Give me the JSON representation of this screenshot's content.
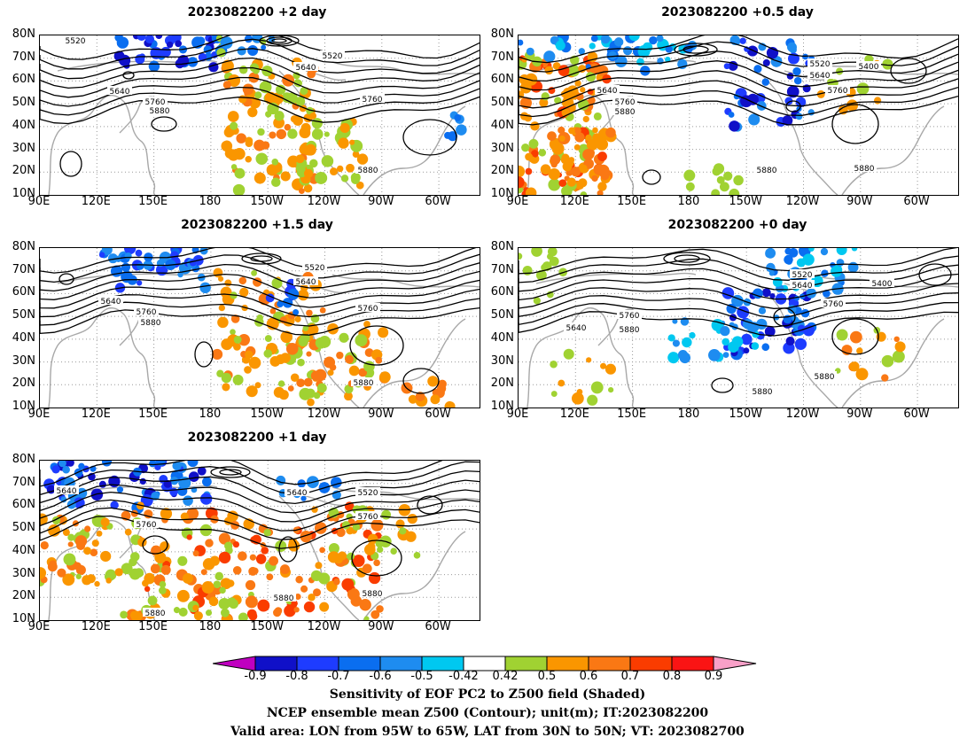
{
  "panels": [
    {
      "title": "2023082200 +2 day"
    },
    {
      "title": "2023082200 +0.5 day"
    },
    {
      "title": "2023082200 +1.5 day"
    },
    {
      "title": "2023082200 +0 day"
    },
    {
      "title": "2023082200 +1 day"
    }
  ],
  "lat_labels": [
    "80N",
    "70N",
    "60N",
    "50N",
    "40N",
    "30N",
    "20N",
    "10N"
  ],
  "lon_labels": [
    "90E",
    "120E",
    "150E",
    "180",
    "150W",
    "120W",
    "90W",
    "60W"
  ],
  "contour_labels": [
    "5400",
    "5520",
    "5640",
    "5760",
    "5880"
  ],
  "colorbar": {
    "labels": [
      "-0.9",
      "-0.8",
      "-0.7",
      "-0.6",
      "-0.5",
      "-0.42",
      "0.42",
      "0.5",
      "0.6",
      "0.7",
      "0.8",
      "0.9"
    ],
    "colors": [
      "#c000c0",
      "#1010c8",
      "#1e3cff",
      "#0a6ef0",
      "#1e8cf0",
      "#00c8f0",
      "#ffffff",
      "#a0d232",
      "#fa9600",
      "#fa7814",
      "#fa3c00",
      "#fa1414",
      "#f8a0c8"
    ]
  },
  "captions": [
    "Sensitivity of EOF PC2 to Z500 field (Shaded)",
    "NCEP ensemble mean Z500 (Contour); unit(m); IT:2023082200",
    "Valid area: LON from 95W to 65W, LAT from 30N to 50N; VT: 2023082700"
  ]
}
